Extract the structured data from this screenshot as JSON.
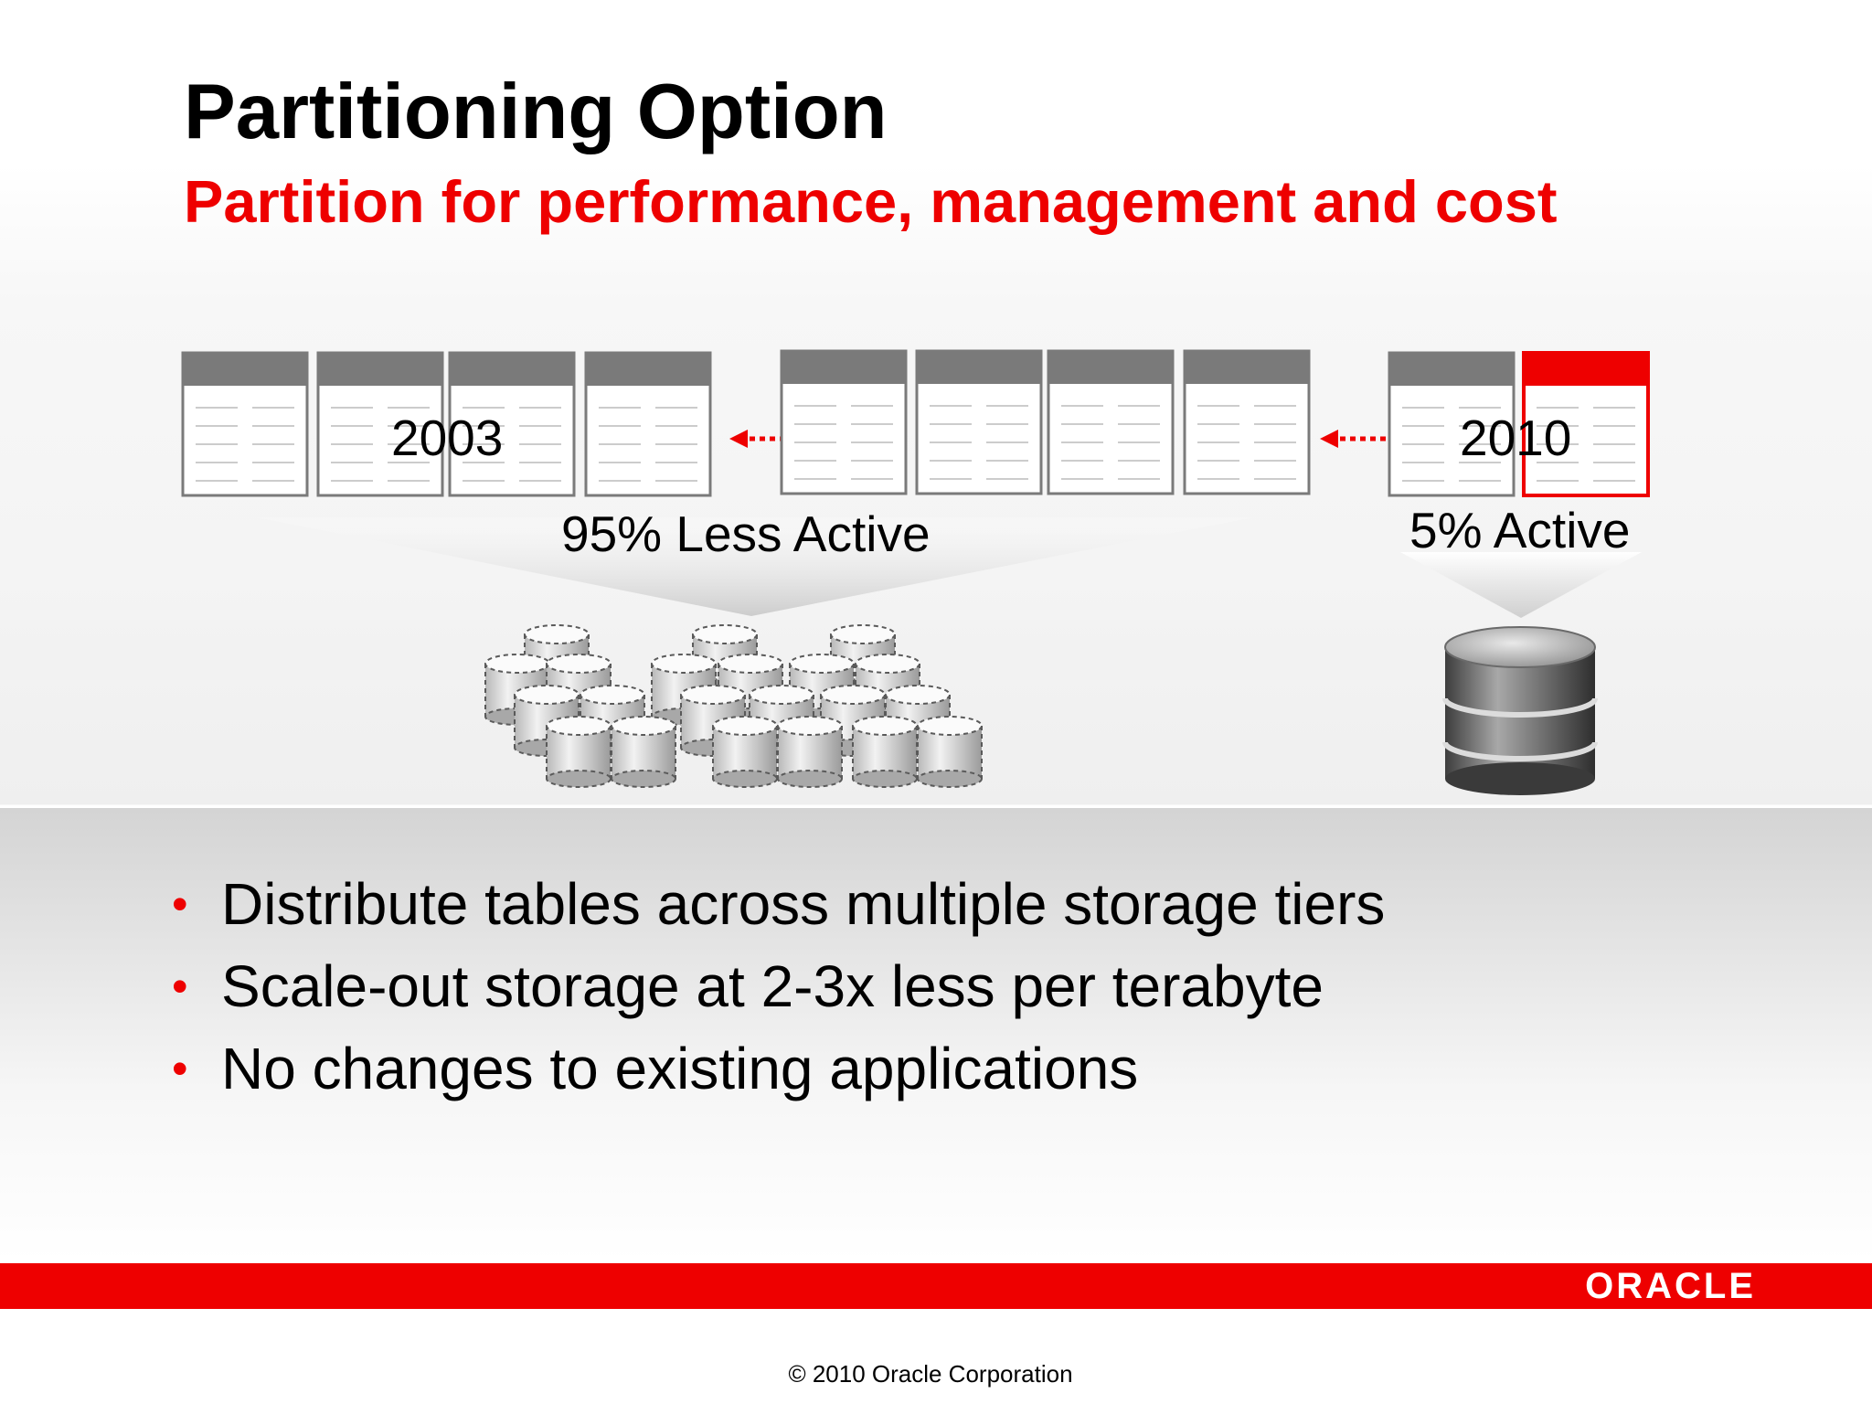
{
  "slide": {
    "title": "Partitioning Option",
    "subtitle": "Partition for performance, management and cost"
  },
  "diagram": {
    "label_start_year": "2003",
    "label_end_year": "2010",
    "label_less_active": "95% Less Active",
    "label_active": "5% Active"
  },
  "bullets": [
    "Distribute tables across multiple storage tiers",
    "Scale-out storage at 2-3x less per terabyte",
    "No changes to existing applications"
  ],
  "footer": {
    "logo_text": "ORACLE",
    "copyright": "© 2010 Oracle Corporation"
  },
  "colors": {
    "accent_red": "#ee0000",
    "table_header_gray": "#777777"
  },
  "icons": {
    "tables": "table-icon",
    "arrow": "dotted-arrow-left-icon",
    "storage": "disk-cylinder-icon"
  }
}
